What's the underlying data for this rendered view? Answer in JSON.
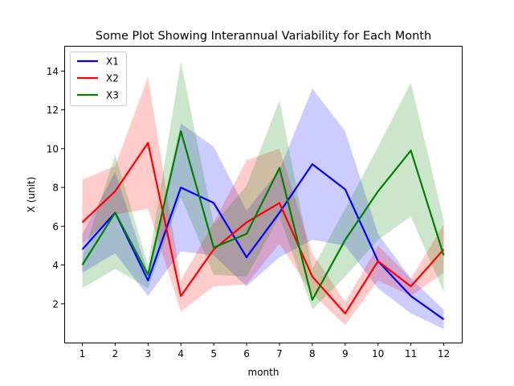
{
  "chart_data": {
    "type": "line",
    "title": "Some Plot Showing Interannual Variability for Each Month",
    "xlabel": "month",
    "ylabel": "X (unit)",
    "x": [
      1,
      2,
      3,
      4,
      5,
      6,
      7,
      8,
      9,
      10,
      11,
      12
    ],
    "xlim": [
      0.45,
      12.55
    ],
    "ylim": [
      0.0,
      15.3
    ],
    "yticks": [
      2,
      4,
      6,
      8,
      10,
      12,
      14
    ],
    "grid": false,
    "legend_position": "upper-left",
    "series": [
      {
        "name": "X1",
        "color": "#0000ff",
        "values": [
          4.8,
          6.7,
          3.2,
          8.0,
          7.2,
          4.4,
          6.7,
          9.2,
          7.9,
          4.2,
          2.4,
          1.2
        ],
        "lower": [
          3.6,
          4.6,
          2.4,
          4.7,
          4.5,
          2.9,
          4.4,
          5.3,
          5.0,
          2.8,
          1.5,
          0.7
        ],
        "upper": [
          5.6,
          8.8,
          3.6,
          11.3,
          10.1,
          6.8,
          8.9,
          13.1,
          10.9,
          5.6,
          3.3,
          1.7
        ]
      },
      {
        "name": "X2",
        "color": "#ff0000",
        "values": [
          6.2,
          7.8,
          10.3,
          2.4,
          4.8,
          6.2,
          7.2,
          3.4,
          1.5,
          4.2,
          2.9,
          4.8
        ],
        "lower": [
          5.1,
          6.6,
          6.9,
          1.6,
          2.9,
          3.0,
          5.1,
          2.5,
          0.9,
          3.2,
          2.4,
          3.6
        ],
        "upper": [
          8.4,
          9.1,
          13.7,
          3.2,
          6.2,
          9.4,
          10.0,
          4.6,
          2.1,
          5.0,
          3.3,
          6.1
        ]
      },
      {
        "name": "X3",
        "color": "#008000",
        "values": [
          4.0,
          6.7,
          3.5,
          10.9,
          4.9,
          5.6,
          9.0,
          2.2,
          5.3,
          7.8,
          9.9,
          4.5
        ],
        "lower": [
          2.8,
          3.8,
          2.8,
          7.5,
          3.5,
          3.4,
          6.5,
          1.7,
          3.4,
          5.3,
          6.5,
          2.6
        ],
        "upper": [
          4.4,
          9.7,
          4.0,
          14.5,
          6.1,
          8.1,
          12.5,
          3.8,
          6.9,
          10.1,
          13.4,
          6.3
        ]
      }
    ]
  }
}
